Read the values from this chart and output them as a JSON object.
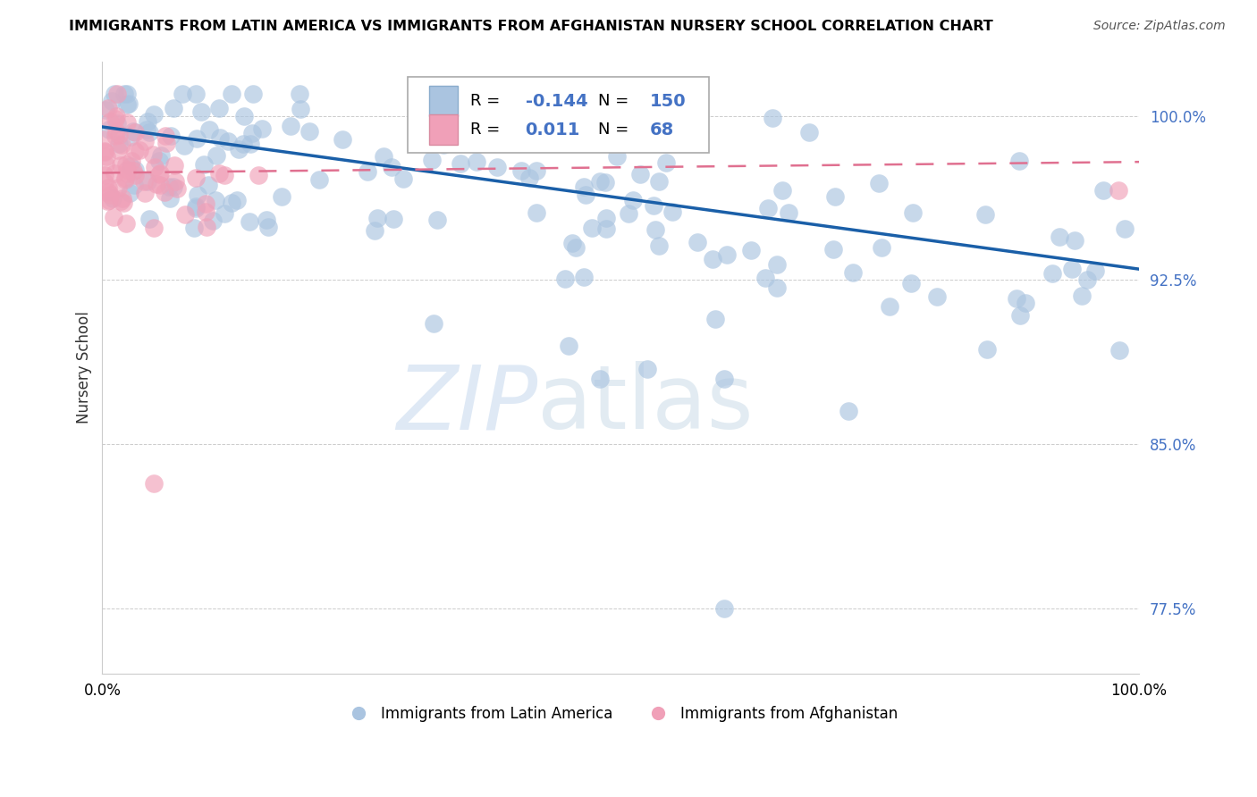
{
  "title": "IMMIGRANTS FROM LATIN AMERICA VS IMMIGRANTS FROM AFGHANISTAN NURSERY SCHOOL CORRELATION CHART",
  "source": "Source: ZipAtlas.com",
  "ylabel": "Nursery School",
  "y_ticks": [
    "100.0%",
    "92.5%",
    "85.0%",
    "77.5%"
  ],
  "y_tick_vals": [
    1.0,
    0.925,
    0.85,
    0.775
  ],
  "xlim": [
    0.0,
    1.0
  ],
  "ylim": [
    0.745,
    1.025
  ],
  "legend_blue_r": "-0.144",
  "legend_blue_n": "150",
  "legend_pink_r": "0.011",
  "legend_pink_n": "68",
  "blue_color": "#aac4e0",
  "pink_color": "#f0a0b8",
  "blue_line_color": "#1a5fa8",
  "pink_line_color": "#e07090",
  "blue_line_start_y": 0.995,
  "blue_line_end_y": 0.93,
  "pink_line_y": 0.974,
  "watermark_zip": "ZIP",
  "watermark_atlas": "atlas"
}
